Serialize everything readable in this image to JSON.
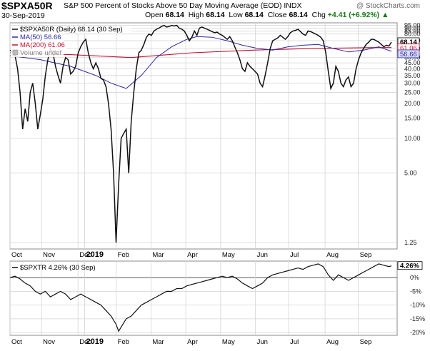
{
  "header": {
    "symbol": "$SPXA50R",
    "description": "S&P 500 Percent of Stocks Above 50 Day Moving Average (EOD) INDX",
    "brand": "@ StockCharts.com",
    "date": "30-Sep-2019",
    "open_label": "Open",
    "open": "68.14",
    "high_label": "High",
    "high": "68.14",
    "low_label": "Low",
    "low": "68.14",
    "close_label": "Close",
    "close": "68.14",
    "chg_label": "Chg",
    "chg": "+4.41 (+6.92%)"
  },
  "colors": {
    "main_line": "#111111",
    "ma50": "#2a2aa8",
    "ma200": "#c8102e",
    "ma50_tag": "#dcdcf4",
    "grid": "#d4d4d4"
  },
  "chart_data": [
    {
      "type": "line",
      "scale": "log",
      "legend": [
        {
          "text": "$SPXA50R (Daily) 68.14 (30 Sep)",
          "color": "#111111"
        },
        {
          "text": "MA(50) 56.66",
          "color": "#2a2aa8"
        },
        {
          "text": "MA(200) 61.06",
          "color": "#c8102e"
        },
        {
          "text": "Volume undef",
          "color": "#888888"
        }
      ],
      "legend_placement": "top-left",
      "ylim": [
        1.1,
        100
      ],
      "yticks": [
        "1.25",
        "5.00",
        "10.00",
        "15.00",
        "20.00",
        "25.00",
        "30.00",
        "35.00",
        "40.00",
        "45.00",
        "50.00",
        "60.00",
        "70.00",
        "80.00",
        "85.00",
        "90.00",
        "95.00"
      ],
      "xticks": [
        "Oct",
        "Nov",
        "Dec",
        "2019",
        "Feb",
        "Mar",
        "Apr",
        "May",
        "Jun",
        "Jul",
        "Aug",
        "Sep"
      ],
      "last_value_labels": [
        "68.14",
        "61.06",
        "56.66"
      ],
      "series": [
        {
          "name": "$SPXA50R",
          "points": [
            [
              0,
              58
            ],
            [
              1,
              56
            ],
            [
              2,
              52
            ],
            [
              3,
              40
            ],
            [
              4,
              25
            ],
            [
              5,
              12
            ],
            [
              6,
              18
            ],
            [
              7,
              14
            ],
            [
              8,
              25
            ],
            [
              9,
              30
            ],
            [
              10,
              20
            ],
            [
              11,
              12
            ],
            [
              12,
              16
            ],
            [
              13,
              22
            ],
            [
              14,
              35
            ],
            [
              15,
              48
            ],
            [
              16,
              60
            ],
            [
              17,
              55
            ],
            [
              18,
              42
            ],
            [
              19,
              35
            ],
            [
              20,
              30
            ],
            [
              21,
              42
            ],
            [
              22,
              50
            ],
            [
              23,
              48
            ],
            [
              24,
              36
            ],
            [
              25,
              38
            ],
            [
              26,
              42
            ],
            [
              27,
              55
            ],
            [
              28,
              62
            ],
            [
              29,
              68
            ],
            [
              30,
              72
            ],
            [
              31,
              55
            ],
            [
              32,
              45
            ],
            [
              33,
              40
            ],
            [
              34,
              45
            ],
            [
              35,
              40
            ],
            [
              36,
              33
            ],
            [
              37,
              32
            ],
            [
              38,
              28
            ],
            [
              39,
              20
            ],
            [
              40,
              12
            ],
            [
              41,
              5
            ],
            [
              42,
              1.25
            ],
            [
              43,
              4
            ],
            [
              44,
              10
            ],
            [
              45,
              11
            ],
            [
              46,
              12
            ],
            [
              47,
              5
            ],
            [
              48,
              14
            ],
            [
              49,
              25
            ],
            [
              50,
              40
            ],
            [
              51,
              55
            ],
            [
              52,
              58
            ],
            [
              53,
              65
            ],
            [
              54,
              75
            ],
            [
              55,
              80
            ],
            [
              56,
              78
            ],
            [
              57,
              85
            ],
            [
              58,
              88
            ],
            [
              59,
              90
            ],
            [
              60,
              93
            ],
            [
              61,
              95
            ],
            [
              62,
              92
            ],
            [
              63,
              93
            ],
            [
              64,
              95
            ],
            [
              65,
              94
            ],
            [
              66,
              95
            ],
            [
              67,
              90
            ],
            [
              68,
              88
            ],
            [
              69,
              85
            ],
            [
              70,
              78
            ],
            [
              71,
              70
            ],
            [
              72,
              75
            ],
            [
              73,
              85
            ],
            [
              74,
              78
            ],
            [
              75,
              90
            ],
            [
              76,
              92
            ],
            [
              77,
              90
            ],
            [
              78,
              88
            ],
            [
              79,
              86
            ],
            [
              80,
              84
            ],
            [
              81,
              82
            ],
            [
              82,
              83
            ],
            [
              83,
              80
            ],
            [
              84,
              78
            ],
            [
              85,
              75
            ],
            [
              86,
              72
            ],
            [
              87,
              76
            ],
            [
              88,
              70
            ],
            [
              89,
              62
            ],
            [
              90,
              55
            ],
            [
              91,
              48
            ],
            [
              92,
              40
            ],
            [
              93,
              38
            ],
            [
              94,
              45
            ],
            [
              95,
              42
            ],
            [
              96,
              40
            ],
            [
              97,
              38
            ],
            [
              98,
              36
            ],
            [
              99,
              30
            ],
            [
              100,
              28
            ],
            [
              101,
              35
            ],
            [
              102,
              45
            ],
            [
              103,
              60
            ],
            [
              104,
              70
            ],
            [
              105,
              72
            ],
            [
              106,
              74
            ],
            [
              107,
              78
            ],
            [
              108,
              75
            ],
            [
              109,
              72
            ],
            [
              110,
              76
            ],
            [
              111,
              82
            ],
            [
              112,
              85
            ],
            [
              113,
              86
            ],
            [
              114,
              88
            ],
            [
              115,
              84
            ],
            [
              116,
              80
            ],
            [
              117,
              78
            ],
            [
              118,
              85
            ],
            [
              119,
              84
            ],
            [
              120,
              82
            ],
            [
              121,
              80
            ],
            [
              122,
              78
            ],
            [
              123,
              75
            ],
            [
              124,
              70
            ],
            [
              125,
              55
            ],
            [
              126,
              38
            ],
            [
              127,
              27
            ],
            [
              128,
              30
            ],
            [
              129,
              42
            ],
            [
              130,
              38
            ],
            [
              131,
              30
            ],
            [
              132,
              28
            ],
            [
              133,
              32
            ],
            [
              134,
              34
            ],
            [
              135,
              28
            ],
            [
              136,
              30
            ],
            [
              137,
              40
            ],
            [
              138,
              48
            ],
            [
              139,
              55
            ],
            [
              140,
              60
            ],
            [
              141,
              65
            ],
            [
              142,
              68
            ],
            [
              143,
              72
            ],
            [
              144,
              72
            ],
            [
              145,
              70
            ],
            [
              146,
              68
            ],
            [
              147,
              65
            ],
            [
              148,
              62
            ],
            [
              149,
              64
            ],
            [
              150,
              63
            ],
            [
              151,
              68.14
            ]
          ]
        },
        {
          "name": "MA(50)",
          "points": [
            [
              0,
              52
            ],
            [
              12,
              48
            ],
            [
              24,
              42
            ],
            [
              34,
              35
            ],
            [
              40,
              30
            ],
            [
              46,
              27
            ],
            [
              52,
              35
            ],
            [
              58,
              50
            ],
            [
              64,
              62
            ],
            [
              70,
              72
            ],
            [
              74,
              76
            ],
            [
              80,
              75
            ],
            [
              86,
              70
            ],
            [
              92,
              64
            ],
            [
              98,
              60
            ],
            [
              104,
              58
            ],
            [
              110,
              62
            ],
            [
              116,
              64
            ],
            [
              122,
              65
            ],
            [
              128,
              60
            ],
            [
              134,
              56
            ],
            [
              140,
              58
            ],
            [
              146,
              62
            ],
            [
              151,
              56.66
            ]
          ]
        },
        {
          "name": "MA(200)",
          "points": [
            [
              0,
              55
            ],
            [
              24,
              53
            ],
            [
              48,
              50
            ],
            [
              72,
              55
            ],
            [
              96,
              58
            ],
            [
              120,
              60
            ],
            [
              144,
              61
            ],
            [
              151,
              61.06
            ]
          ]
        }
      ]
    },
    {
      "type": "line",
      "legend": [
        {
          "text": "$SPXTR 4.26% (30 Sep)",
          "color": "#111111"
        }
      ],
      "legend_placement": "top-left",
      "ylim": [
        -21,
        6
      ],
      "yticks": [
        "0%",
        "-5%",
        "-10%",
        "-15%",
        "-20%"
      ],
      "xticks": [
        "Oct",
        "Nov",
        "Dec",
        "2019",
        "Feb",
        "Mar",
        "Apr",
        "May",
        "Jun",
        "Jul",
        "Aug",
        "Sep"
      ],
      "last_value_label": "4.26%",
      "series": [
        {
          "name": "$SPXTR",
          "points": [
            [
              0,
              0
            ],
            [
              2,
              0.5
            ],
            [
              4,
              -0.5
            ],
            [
              6,
              -2
            ],
            [
              8,
              -3
            ],
            [
              10,
              -5
            ],
            [
              12,
              -6
            ],
            [
              14,
              -5
            ],
            [
              16,
              -7
            ],
            [
              18,
              -6
            ],
            [
              20,
              -5
            ],
            [
              22,
              -6
            ],
            [
              24,
              -8
            ],
            [
              26,
              -7
            ],
            [
              28,
              -6
            ],
            [
              30,
              -7
            ],
            [
              32,
              -8
            ],
            [
              34,
              -9
            ],
            [
              36,
              -10
            ],
            [
              38,
              -12
            ],
            [
              40,
              -14
            ],
            [
              42,
              -17
            ],
            [
              43,
              -19.5
            ],
            [
              44,
              -18
            ],
            [
              46,
              -15
            ],
            [
              48,
              -14
            ],
            [
              50,
              -12
            ],
            [
              52,
              -10
            ],
            [
              54,
              -9
            ],
            [
              56,
              -8
            ],
            [
              58,
              -7
            ],
            [
              60,
              -6
            ],
            [
              62,
              -5
            ],
            [
              64,
              -5
            ],
            [
              66,
              -4
            ],
            [
              68,
              -4
            ],
            [
              70,
              -3
            ],
            [
              72,
              -2.5
            ],
            [
              74,
              -2
            ],
            [
              76,
              -1.5
            ],
            [
              78,
              -1
            ],
            [
              80,
              -0.5
            ],
            [
              82,
              0
            ],
            [
              84,
              0.5
            ],
            [
              86,
              0
            ],
            [
              88,
              0.5
            ],
            [
              90,
              -0.5
            ],
            [
              92,
              -2
            ],
            [
              94,
              -3
            ],
            [
              96,
              -4
            ],
            [
              98,
              -3
            ],
            [
              100,
              -2
            ],
            [
              102,
              0
            ],
            [
              104,
              1
            ],
            [
              106,
              1.5
            ],
            [
              108,
              2
            ],
            [
              110,
              2.5
            ],
            [
              112,
              3
            ],
            [
              114,
              3.5
            ],
            [
              116,
              3
            ],
            [
              118,
              4
            ],
            [
              120,
              4.5
            ],
            [
              122,
              5
            ],
            [
              124,
              4
            ],
            [
              126,
              1
            ],
            [
              128,
              -1
            ],
            [
              130,
              1
            ],
            [
              132,
              0
            ],
            [
              134,
              -1
            ],
            [
              136,
              0
            ],
            [
              138,
              1
            ],
            [
              140,
              2
            ],
            [
              142,
              3
            ],
            [
              144,
              4
            ],
            [
              146,
              5
            ],
            [
              148,
              4.5
            ],
            [
              150,
              4
            ],
            [
              151,
              4.26
            ]
          ]
        }
      ]
    }
  ]
}
